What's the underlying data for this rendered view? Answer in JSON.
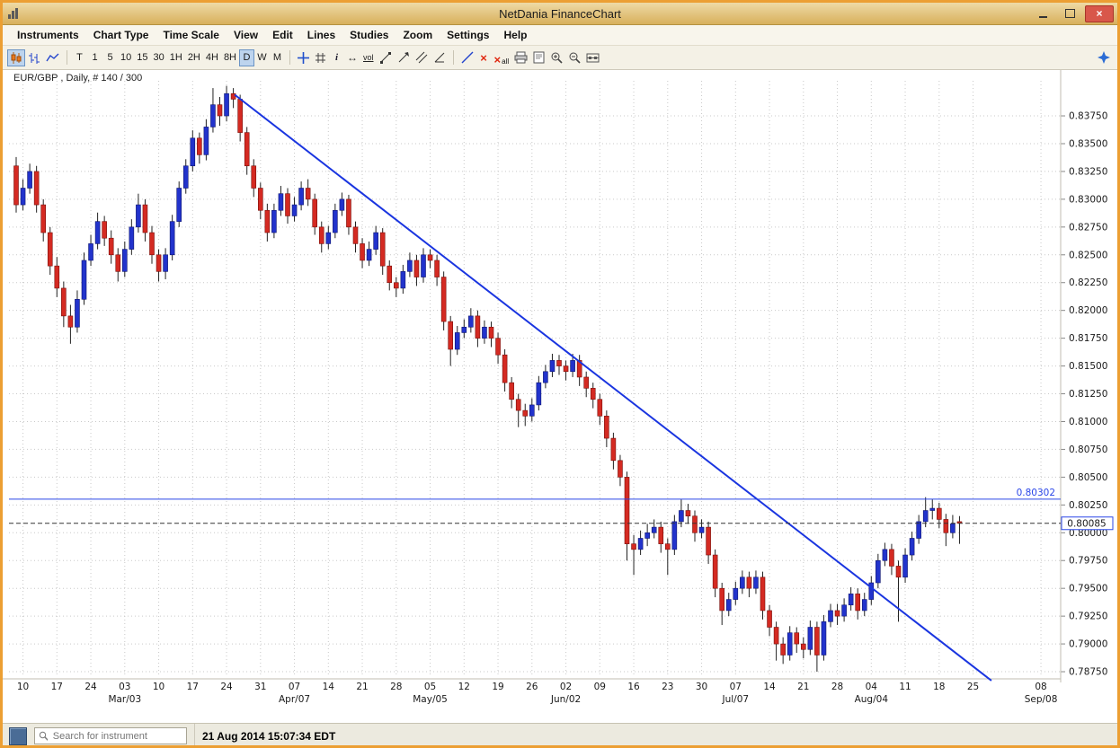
{
  "window": {
    "title": "NetDania FinanceChart",
    "close_glyph": "×"
  },
  "menu": {
    "items": [
      "Instruments",
      "Chart Type",
      "Time Scale",
      "View",
      "Edit",
      "Lines",
      "Studies",
      "Zoom",
      "Settings",
      "Help"
    ]
  },
  "toolbar": {
    "timeframes": [
      "T",
      "1",
      "5",
      "10",
      "15",
      "30",
      "1H",
      "2H",
      "4H",
      "8H",
      "D",
      "W",
      "M"
    ],
    "selected_timeframe": "D",
    "volume_label": "vol",
    "info_glyph": "i",
    "arrows_glyph": "↔",
    "delete_glyph": "×",
    "delete_all_label": "all"
  },
  "chart_header": {
    "text": "EUR/GBP , Daily, # 140 / 300"
  },
  "status_bar": {
    "search_placeholder": "Search for instrument",
    "timestamp": "21 Aug 2014 15:07:34 EDT"
  },
  "chart_data": {
    "type": "candlestick",
    "symbol": "EUR/GBP",
    "interval": "Daily",
    "visible_count": 140,
    "total_count": 300,
    "ylim": [
      0.78718,
      0.84033
    ],
    "y_ticks": [
      "0.83750",
      "0.83500",
      "0.83250",
      "0.83000",
      "0.82750",
      "0.82500",
      "0.82250",
      "0.82000",
      "0.81750",
      "0.81500",
      "0.81250",
      "0.81000",
      "0.80750",
      "0.80500",
      "0.80250",
      "0.80000",
      "0.79750",
      "0.79500",
      "0.79250",
      "0.79000",
      "0.78750"
    ],
    "x_ticks": [
      {
        "i": 1,
        "label": "10"
      },
      {
        "i": 6,
        "label": "17"
      },
      {
        "i": 11,
        "label": "24"
      },
      {
        "i": 16,
        "label": "03",
        "month": "Mar/03"
      },
      {
        "i": 21,
        "label": "10"
      },
      {
        "i": 26,
        "label": "17"
      },
      {
        "i": 31,
        "label": "24"
      },
      {
        "i": 36,
        "label": "31"
      },
      {
        "i": 41,
        "label": "07",
        "month": "Apr/07"
      },
      {
        "i": 46,
        "label": "14"
      },
      {
        "i": 51,
        "label": "21"
      },
      {
        "i": 56,
        "label": "28"
      },
      {
        "i": 61,
        "label": "05",
        "month": "May/05"
      },
      {
        "i": 66,
        "label": "12"
      },
      {
        "i": 71,
        "label": "19"
      },
      {
        "i": 76,
        "label": "26"
      },
      {
        "i": 81,
        "label": "02",
        "month": "Jun/02"
      },
      {
        "i": 86,
        "label": "09"
      },
      {
        "i": 91,
        "label": "16"
      },
      {
        "i": 96,
        "label": "23"
      },
      {
        "i": 101,
        "label": "30"
      },
      {
        "i": 106,
        "label": "07",
        "month": "Jul/07"
      },
      {
        "i": 111,
        "label": "14"
      },
      {
        "i": 116,
        "label": "21"
      },
      {
        "i": 121,
        "label": "28"
      },
      {
        "i": 126,
        "label": "04",
        "month": "Aug/04"
      },
      {
        "i": 131,
        "label": "11"
      },
      {
        "i": 136,
        "label": "18"
      },
      {
        "i": 141,
        "label": "25"
      },
      {
        "i": 151,
        "label": "08",
        "month": "Sep/08"
      }
    ],
    "candles": [
      [
        0.833,
        0.8338,
        0.8288,
        0.8295
      ],
      [
        0.8295,
        0.8318,
        0.829,
        0.831
      ],
      [
        0.831,
        0.8332,
        0.8305,
        0.8325
      ],
      [
        0.8325,
        0.833,
        0.8288,
        0.8295
      ],
      [
        0.8295,
        0.83,
        0.8262,
        0.827
      ],
      [
        0.827,
        0.8275,
        0.8232,
        0.824
      ],
      [
        0.824,
        0.8248,
        0.8212,
        0.822
      ],
      [
        0.822,
        0.8226,
        0.8185,
        0.8195
      ],
      [
        0.8195,
        0.8205,
        0.817,
        0.8185
      ],
      [
        0.8185,
        0.8218,
        0.818,
        0.821
      ],
      [
        0.821,
        0.8252,
        0.8205,
        0.8245
      ],
      [
        0.8245,
        0.8268,
        0.824,
        0.826
      ],
      [
        0.826,
        0.8288,
        0.8255,
        0.828
      ],
      [
        0.828,
        0.8285,
        0.8258,
        0.8265
      ],
      [
        0.8265,
        0.8272,
        0.8242,
        0.825
      ],
      [
        0.825,
        0.8256,
        0.8226,
        0.8235
      ],
      [
        0.8235,
        0.8262,
        0.823,
        0.8255
      ],
      [
        0.8255,
        0.8282,
        0.825,
        0.8275
      ],
      [
        0.8275,
        0.8305,
        0.827,
        0.8295
      ],
      [
        0.8295,
        0.83,
        0.8262,
        0.827
      ],
      [
        0.827,
        0.8276,
        0.8242,
        0.825
      ],
      [
        0.825,
        0.8255,
        0.8226,
        0.8235
      ],
      [
        0.8235,
        0.8256,
        0.8228,
        0.825
      ],
      [
        0.825,
        0.8286,
        0.8245,
        0.828
      ],
      [
        0.828,
        0.8316,
        0.8275,
        0.831
      ],
      [
        0.831,
        0.8336,
        0.8305,
        0.833
      ],
      [
        0.833,
        0.8362,
        0.8325,
        0.8355
      ],
      [
        0.8355,
        0.836,
        0.8332,
        0.834
      ],
      [
        0.834,
        0.8372,
        0.8335,
        0.8365
      ],
      [
        0.8365,
        0.84,
        0.836,
        0.8385
      ],
      [
        0.8385,
        0.8392,
        0.8366,
        0.8375
      ],
      [
        0.8375,
        0.8402,
        0.837,
        0.8395
      ],
      [
        0.8395,
        0.84,
        0.8382,
        0.839
      ],
      [
        0.839,
        0.8394,
        0.8352,
        0.836
      ],
      [
        0.836,
        0.8365,
        0.8322,
        0.833
      ],
      [
        0.833,
        0.8336,
        0.8302,
        0.831
      ],
      [
        0.831,
        0.8315,
        0.8282,
        0.829
      ],
      [
        0.829,
        0.8296,
        0.8262,
        0.827
      ],
      [
        0.827,
        0.8296,
        0.8265,
        0.829
      ],
      [
        0.829,
        0.8312,
        0.8285,
        0.8305
      ],
      [
        0.8305,
        0.831,
        0.8278,
        0.8285
      ],
      [
        0.8285,
        0.8302,
        0.828,
        0.8295
      ],
      [
        0.8295,
        0.8316,
        0.829,
        0.831
      ],
      [
        0.831,
        0.8318,
        0.8294,
        0.83
      ],
      [
        0.83,
        0.8305,
        0.8268,
        0.8275
      ],
      [
        0.8275,
        0.828,
        0.8252,
        0.826
      ],
      [
        0.826,
        0.8276,
        0.8255,
        0.827
      ],
      [
        0.827,
        0.8296,
        0.8265,
        0.829
      ],
      [
        0.829,
        0.8306,
        0.8285,
        0.83
      ],
      [
        0.83,
        0.8304,
        0.8268,
        0.8275
      ],
      [
        0.8275,
        0.828,
        0.8252,
        0.826
      ],
      [
        0.826,
        0.8265,
        0.8238,
        0.8245
      ],
      [
        0.8245,
        0.8262,
        0.824,
        0.8255
      ],
      [
        0.8255,
        0.8276,
        0.825,
        0.827
      ],
      [
        0.827,
        0.8274,
        0.8232,
        0.824
      ],
      [
        0.824,
        0.8245,
        0.8218,
        0.8225
      ],
      [
        0.8225,
        0.823,
        0.8212,
        0.822
      ],
      [
        0.822,
        0.8241,
        0.8215,
        0.8235
      ],
      [
        0.8235,
        0.8252,
        0.823,
        0.8245
      ],
      [
        0.8245,
        0.825,
        0.8222,
        0.823
      ],
      [
        0.823,
        0.8256,
        0.8225,
        0.825
      ],
      [
        0.825,
        0.8255,
        0.8238,
        0.8245
      ],
      [
        0.8245,
        0.825,
        0.8222,
        0.823
      ],
      [
        0.823,
        0.8235,
        0.8182,
        0.819
      ],
      [
        0.819,
        0.8195,
        0.815,
        0.8165
      ],
      [
        0.8165,
        0.8186,
        0.816,
        0.818
      ],
      [
        0.818,
        0.8192,
        0.8175,
        0.8185
      ],
      [
        0.8185,
        0.8202,
        0.818,
        0.8195
      ],
      [
        0.8195,
        0.82,
        0.8167,
        0.8175
      ],
      [
        0.8175,
        0.8191,
        0.817,
        0.8185
      ],
      [
        0.8185,
        0.819,
        0.8167,
        0.8175
      ],
      [
        0.8175,
        0.818,
        0.8152,
        0.816
      ],
      [
        0.816,
        0.8165,
        0.8127,
        0.8135
      ],
      [
        0.8135,
        0.814,
        0.8112,
        0.812
      ],
      [
        0.812,
        0.8125,
        0.8095,
        0.811
      ],
      [
        0.811,
        0.8116,
        0.8096,
        0.8105
      ],
      [
        0.8105,
        0.8121,
        0.81,
        0.8115
      ],
      [
        0.8115,
        0.8141,
        0.811,
        0.8135
      ],
      [
        0.8135,
        0.8151,
        0.813,
        0.8145
      ],
      [
        0.8145,
        0.8161,
        0.814,
        0.8155
      ],
      [
        0.8155,
        0.816,
        0.8142,
        0.815
      ],
      [
        0.815,
        0.8155,
        0.8137,
        0.8145
      ],
      [
        0.8145,
        0.8161,
        0.814,
        0.8155
      ],
      [
        0.8155,
        0.816,
        0.8132,
        0.814
      ],
      [
        0.814,
        0.8145,
        0.8122,
        0.813
      ],
      [
        0.813,
        0.8135,
        0.8112,
        0.812
      ],
      [
        0.812,
        0.8125,
        0.8097,
        0.8105
      ],
      [
        0.8105,
        0.811,
        0.8077,
        0.8085
      ],
      [
        0.8085,
        0.809,
        0.8057,
        0.8065
      ],
      [
        0.8065,
        0.807,
        0.8042,
        0.805
      ],
      [
        0.805,
        0.8055,
        0.7975,
        0.799
      ],
      [
        0.799,
        0.7998,
        0.7962,
        0.7985
      ],
      [
        0.7985,
        0.8002,
        0.798,
        0.7995
      ],
      [
        0.7995,
        0.8008,
        0.7988,
        0.8
      ],
      [
        0.8,
        0.8012,
        0.7995,
        0.8005
      ],
      [
        0.8005,
        0.801,
        0.7982,
        0.799
      ],
      [
        0.799,
        0.7995,
        0.7962,
        0.7985
      ],
      [
        0.7985,
        0.8016,
        0.798,
        0.801
      ],
      [
        0.801,
        0.803,
        0.8005,
        0.802
      ],
      [
        0.802,
        0.8026,
        0.8008,
        0.8015
      ],
      [
        0.8015,
        0.802,
        0.7992,
        0.8
      ],
      [
        0.8,
        0.8012,
        0.7995,
        0.8005
      ],
      [
        0.8005,
        0.801,
        0.7972,
        0.798
      ],
      [
        0.798,
        0.7985,
        0.7942,
        0.795
      ],
      [
        0.795,
        0.7955,
        0.7917,
        0.793
      ],
      [
        0.793,
        0.7946,
        0.7925,
        0.794
      ],
      [
        0.794,
        0.7956,
        0.7935,
        0.795
      ],
      [
        0.795,
        0.7966,
        0.7945,
        0.796
      ],
      [
        0.796,
        0.7965,
        0.7942,
        0.795
      ],
      [
        0.795,
        0.7966,
        0.7945,
        0.796
      ],
      [
        0.796,
        0.7965,
        0.7922,
        0.793
      ],
      [
        0.793,
        0.7935,
        0.7907,
        0.7915
      ],
      [
        0.7915,
        0.792,
        0.7885,
        0.79
      ],
      [
        0.79,
        0.7906,
        0.7882,
        0.789
      ],
      [
        0.789,
        0.7916,
        0.7885,
        0.791
      ],
      [
        0.791,
        0.7915,
        0.7892,
        0.79
      ],
      [
        0.79,
        0.7906,
        0.7887,
        0.7895
      ],
      [
        0.7895,
        0.7921,
        0.789,
        0.7915
      ],
      [
        0.7915,
        0.792,
        0.7875,
        0.789
      ],
      [
        0.789,
        0.7926,
        0.7885,
        0.792
      ],
      [
        0.792,
        0.7936,
        0.7915,
        0.793
      ],
      [
        0.793,
        0.7936,
        0.7917,
        0.7925
      ],
      [
        0.7925,
        0.7941,
        0.792,
        0.7935
      ],
      [
        0.7935,
        0.7951,
        0.793,
        0.7945
      ],
      [
        0.7945,
        0.795,
        0.7922,
        0.793
      ],
      [
        0.793,
        0.7946,
        0.7925,
        0.794
      ],
      [
        0.794,
        0.7961,
        0.7935,
        0.7955
      ],
      [
        0.7955,
        0.7981,
        0.795,
        0.7975
      ],
      [
        0.7975,
        0.7991,
        0.797,
        0.7985
      ],
      [
        0.7985,
        0.799,
        0.7962,
        0.797
      ],
      [
        0.797,
        0.7975,
        0.792,
        0.796
      ],
      [
        0.796,
        0.7986,
        0.7955,
        0.798
      ],
      [
        0.798,
        0.8001,
        0.7975,
        0.7995
      ],
      [
        0.7995,
        0.8016,
        0.799,
        0.801
      ],
      [
        0.801,
        0.8032,
        0.8005,
        0.802
      ],
      [
        0.802,
        0.803,
        0.8012,
        0.8022
      ],
      [
        0.8022,
        0.8027,
        0.8004,
        0.8012
      ],
      [
        0.8012,
        0.8017,
        0.7988,
        0.8
      ],
      [
        0.8,
        0.8016,
        0.7995,
        0.8008
      ],
      [
        0.801,
        0.8015,
        0.799,
        0.80085
      ]
    ],
    "trendline": {
      "from_index": 32.2,
      "from_price": 0.8394,
      "to_index": 143.7,
      "to_price": 0.7867
    },
    "horizontal_line": {
      "price": 0.80302,
      "label": "0.80302"
    },
    "last_price": {
      "price": 0.80085,
      "label": "0.80085"
    },
    "colors": {
      "up": "#2233cc",
      "down": "#d42a22",
      "trend": "#1a35e0",
      "grid": "#c9c9c9",
      "hline": "#2a46e8",
      "wick": "#222222"
    }
  }
}
